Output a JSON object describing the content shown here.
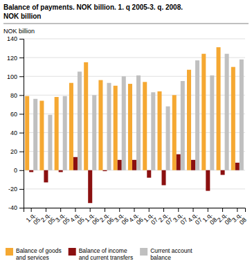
{
  "chart_data": {
    "type": "bar",
    "title": "Balance of payments. NOK billion. 1. q 2005-3. q. 2008.",
    "subtitle": "NOK billion",
    "ylabel": "NOK billion",
    "categories": [
      "1.q.\n05",
      "2.q.\n05",
      "3.q.\n05",
      "4.q.\n05",
      "1.q.\n06",
      "2.q.\n06",
      "3.q.\n06",
      "4.q.\n06",
      "1.q.\n07",
      "2.q.\n07",
      "3.q.\n07",
      "4.q.\n07",
      "1.q.\n08",
      "2.q.\n08",
      "3.q.\n08"
    ],
    "series": [
      {
        "name": "Balance of goods\nand services",
        "color": "#F5A832",
        "values": [
          79,
          74,
          78,
          93,
          115,
          96,
          90,
          92,
          94,
          84,
          80,
          107,
          124,
          131,
          110
        ]
      },
      {
        "name": "Balance of income\nand current transfers",
        "color": "#8B1010",
        "values": [
          -2,
          -13,
          -2,
          14,
          -35,
          -1,
          11,
          11,
          -8,
          -16,
          17,
          11,
          -22,
          -5,
          8
        ]
      },
      {
        "name": "Current account\nbalance",
        "color": "#C0C0C0",
        "values": [
          76,
          59,
          79,
          105,
          80,
          93,
          100,
          101,
          83,
          68,
          95,
          117,
          101,
          124,
          118
        ]
      }
    ],
    "ylim": [
      -40,
      140
    ],
    "yticks": [
      -40,
      -20,
      0,
      20,
      40,
      60,
      80,
      100,
      120,
      140
    ],
    "grid": true,
    "legend": "bottom"
  }
}
